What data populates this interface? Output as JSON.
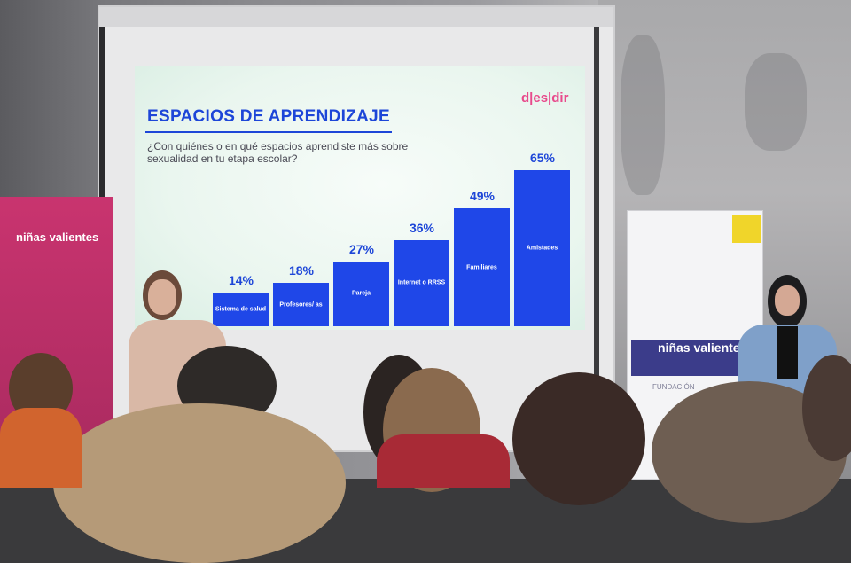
{
  "slide": {
    "logo": "d|es|dir",
    "title": "ESPACIOS DE APRENDIZAJE",
    "question": "¿Con quiénes o en qué espacios aprendiste más sobre sexualidad en tu etapa escolar?"
  },
  "chart_data": {
    "type": "bar",
    "categories": [
      "Sistema de salud",
      "Profesores/ as",
      "Pareja",
      "Internet o RRSS",
      "Familiares",
      "Amistades"
    ],
    "values": [
      14,
      18,
      27,
      36,
      49,
      65
    ],
    "data_labels": [
      "14%",
      "18%",
      "27%",
      "36%",
      "49%",
      "65%"
    ],
    "colors": {
      "bar": "#1f47e8",
      "text": "#1d46d8"
    }
  },
  "banners": {
    "left": "niñas valientes",
    "right": "niñas valientes",
    "right_sub": "FUNDACIÓN"
  }
}
